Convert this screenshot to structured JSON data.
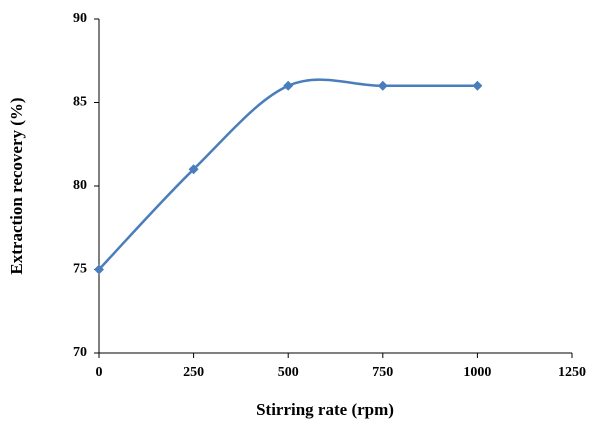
{
  "chart_data": {
    "type": "line",
    "xlabel": "Stirring rate (rpm)",
    "ylabel": "Extraction recovery (%)",
    "x": [
      0,
      250,
      500,
      750,
      1000
    ],
    "series": [
      {
        "color": "#4a7ebb",
        "values": [
          75,
          81,
          86,
          86,
          86
        ]
      }
    ],
    "xlim": [
      0,
      1250
    ],
    "xticks": [
      0,
      250,
      500,
      750,
      1000,
      1250
    ],
    "ylim": [
      70,
      90
    ],
    "yticks": [
      70,
      75,
      80,
      85,
      90
    ],
    "smooth": true,
    "markers": "diamond",
    "grid": false
  }
}
